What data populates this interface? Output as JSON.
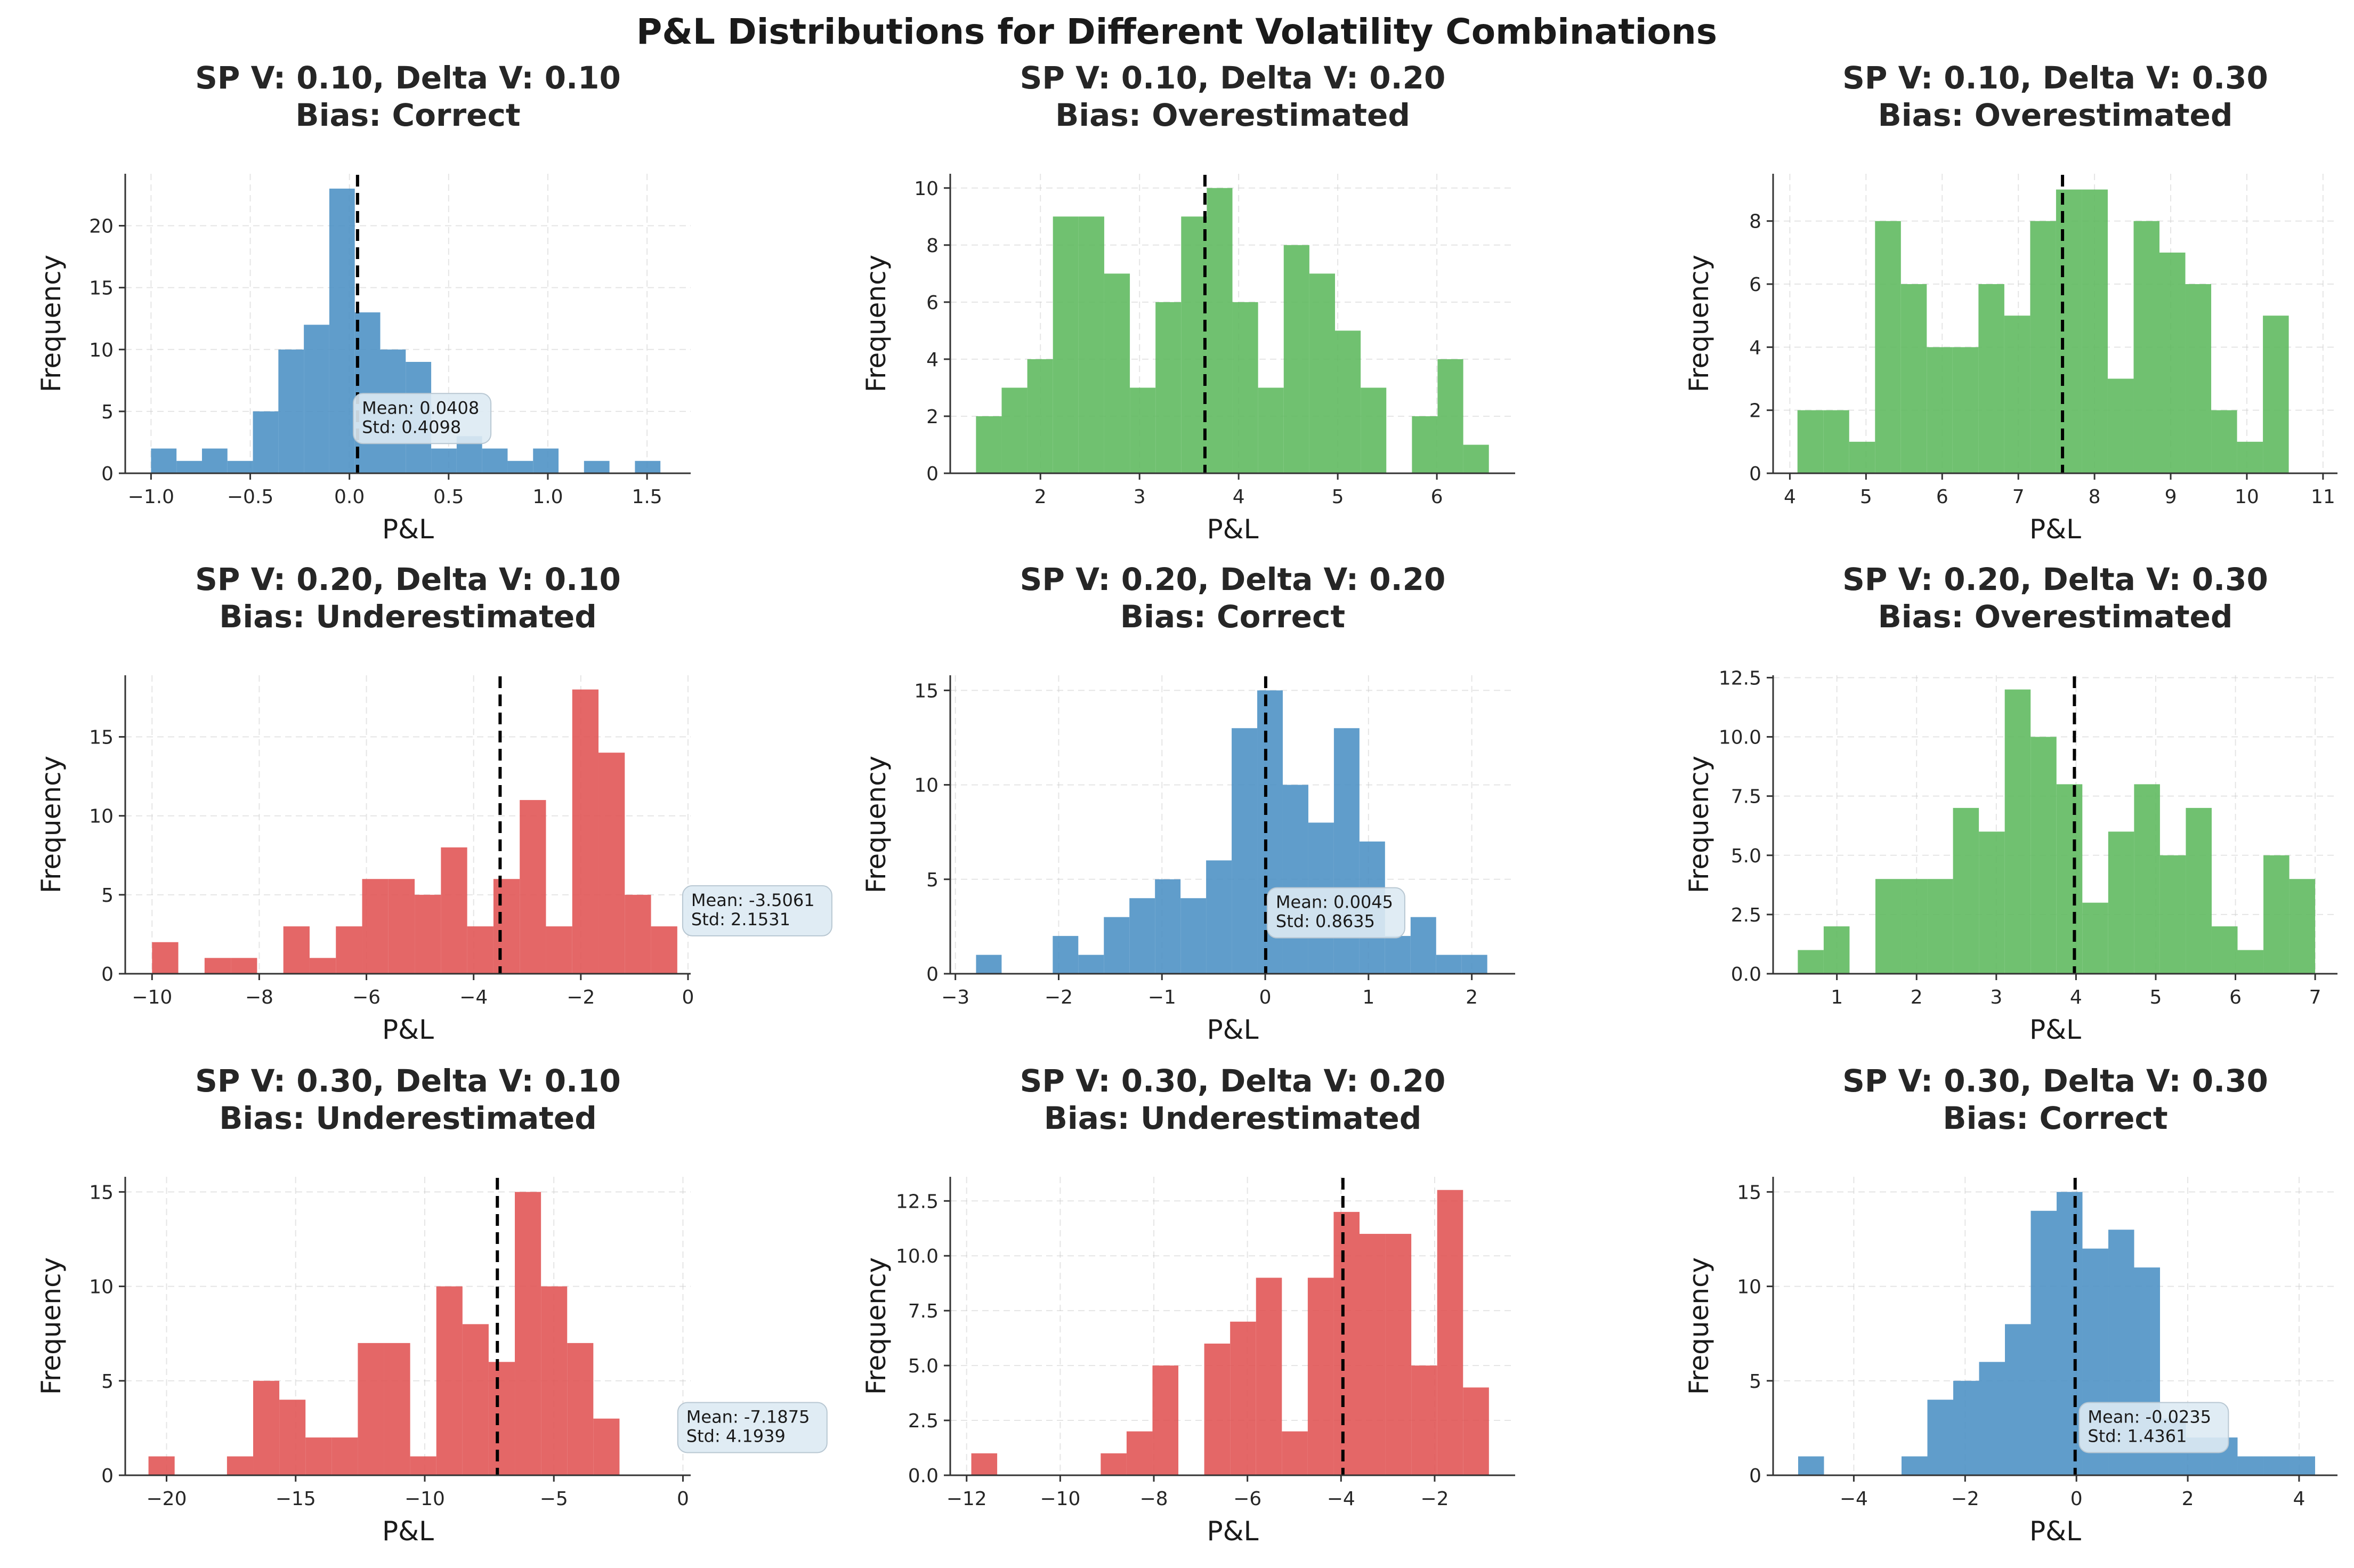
{
  "figure": {
    "title": "P&L Distributions for Different Volatility Combinations"
  },
  "chart_data": [
    {
      "type": "bar",
      "title": "SP V: 0.10, Delta V: 0.10",
      "subtitle": "Bias: Correct",
      "xlabel": "P&L",
      "ylabel": "Frequency",
      "color": "#4a90c4",
      "xlim": [
        -1.13,
        1.72
      ],
      "ylim": [
        0,
        24.2
      ],
      "xticks": [
        -1.0,
        -0.5,
        0.0,
        0.5,
        1.0,
        1.5
      ],
      "xtick_labels": [
        "−1.0",
        "−0.5",
        "0.0",
        "0.5",
        "1.0",
        "1.5"
      ],
      "yticks": [
        0,
        5,
        10,
        15,
        20
      ],
      "ytick_labels": [
        "0",
        "5",
        "10",
        "15",
        "20"
      ],
      "bins": {
        "start": -1.0,
        "width": 0.12837,
        "counts": [
          2,
          1,
          2,
          1,
          5,
          10,
          12,
          23,
          13,
          10,
          9,
          2,
          3,
          2,
          1,
          2,
          0,
          1,
          0,
          1
        ]
      },
      "mean": 0.0408,
      "stats_text": [
        "Mean: 0.0408",
        "Std: 0.4098"
      ],
      "annotation_at": [
        0.02,
        2.4
      ]
    },
    {
      "type": "bar",
      "title": "SP V: 0.10, Delta V: 0.20",
      "subtitle": "Bias: Overestimated",
      "xlabel": "P&L",
      "ylabel": "Frequency",
      "color": "#5cb85c",
      "xlim": [
        1.09,
        6.79
      ],
      "ylim": [
        0,
        10.5
      ],
      "xticks": [
        2,
        3,
        4,
        5,
        6
      ],
      "xtick_labels": [
        "2",
        "3",
        "4",
        "5",
        "6"
      ],
      "yticks": [
        0,
        2,
        4,
        6,
        8,
        10
      ],
      "ytick_labels": [
        "0",
        "2",
        "4",
        "6",
        "8",
        "10"
      ],
      "bins": {
        "start": 1.35,
        "width": 0.25875,
        "counts": [
          2,
          3,
          4,
          9,
          9,
          7,
          3,
          6,
          9,
          10,
          6,
          3,
          8,
          7,
          5,
          3,
          0,
          2,
          4,
          1
        ]
      },
      "mean": 3.66,
      "stats_text": [],
      "annotation_at": null
    },
    {
      "type": "bar",
      "title": "SP V: 0.10, Delta V: 0.30",
      "subtitle": "Bias: Overestimated",
      "xlabel": "P&L",
      "ylabel": "Frequency",
      "color": "#5cb85c",
      "xlim": [
        3.78,
        11.19
      ],
      "ylim": [
        0,
        9.5
      ],
      "xticks": [
        4,
        5,
        6,
        7,
        8,
        9,
        10,
        11
      ],
      "xtick_labels": [
        "4",
        "5",
        "6",
        "7",
        "8",
        "9",
        "10",
        "11"
      ],
      "yticks": [
        0,
        2,
        4,
        6,
        8
      ],
      "ytick_labels": [
        "0",
        "2",
        "4",
        "6",
        "8"
      ],
      "bins": {
        "start": 4.1,
        "width": 0.3395,
        "counts": [
          2,
          2,
          1,
          8,
          6,
          4,
          4,
          6,
          5,
          8,
          9,
          9,
          3,
          8,
          7,
          6,
          2,
          1,
          5,
          0
        ]
      },
      "mean": 7.58,
      "stats_text": [],
      "annotation_at": null
    },
    {
      "type": "bar",
      "title": "SP V: 0.20, Delta V: 0.10",
      "subtitle": "Bias: Underestimated",
      "xlabel": "P&L",
      "ylabel": "Frequency",
      "color": "#e05252",
      "xlim": [
        -10.5,
        0.05
      ],
      "ylim": [
        0,
        18.9
      ],
      "xticks": [
        -10,
        -8,
        -6,
        -4,
        -2,
        0
      ],
      "xtick_labels": [
        "−10",
        "−8",
        "−6",
        "−4",
        "−2",
        "0"
      ],
      "yticks": [
        0,
        5,
        10,
        15
      ],
      "ytick_labels": [
        "0",
        "5",
        "10",
        "15"
      ],
      "bins": {
        "start": -10.0,
        "width": 0.49,
        "counts": [
          2,
          0,
          1,
          1,
          0,
          3,
          1,
          3,
          6,
          6,
          5,
          8,
          3,
          6,
          11,
          3,
          18,
          14,
          5,
          3
        ]
      },
      "mean": -3.5061,
      "stats_text": [
        "Mean: -3.5061",
        "Std: 2.1531"
      ],
      "annotation_at": [
        -0.1,
        2.4
      ]
    },
    {
      "type": "bar",
      "title": "SP V: 0.20, Delta V: 0.20",
      "subtitle": "Bias: Correct",
      "xlabel": "P&L",
      "ylabel": "Frequency",
      "color": "#4a90c4",
      "xlim": [
        -3.05,
        2.42
      ],
      "ylim": [
        0,
        15.8
      ],
      "xticks": [
        -3,
        -2,
        -1,
        0,
        1,
        2
      ],
      "xtick_labels": [
        "−3",
        "−2",
        "−1",
        "0",
        "1",
        "2"
      ],
      "yticks": [
        0,
        5,
        10,
        15
      ],
      "ytick_labels": [
        "0",
        "5",
        "10",
        "15"
      ],
      "bins": {
        "start": -2.8,
        "width": 0.2475,
        "counts": [
          1,
          0,
          0,
          2,
          1,
          3,
          4,
          5,
          4,
          6,
          13,
          15,
          10,
          8,
          13,
          7,
          2,
          3,
          1,
          1
        ]
      },
      "mean": 0.0045,
      "stats_text": [
        "Mean: 0.0045",
        "Std: 0.8635"
      ],
      "annotation_at": [
        0.02,
        1.9
      ]
    },
    {
      "type": "bar",
      "title": "SP V: 0.20, Delta V: 0.30",
      "subtitle": "Bias: Overestimated",
      "xlabel": "P&L",
      "ylabel": "Frequency",
      "color": "#5cb85c",
      "xlim": [
        0.2,
        7.28
      ],
      "ylim": [
        0,
        12.6
      ],
      "xticks": [
        1,
        2,
        3,
        4,
        5,
        6,
        7
      ],
      "xtick_labels": [
        "1",
        "2",
        "3",
        "4",
        "5",
        "6",
        "7"
      ],
      "yticks": [
        0,
        2.5,
        5.0,
        7.5,
        10.0,
        12.5
      ],
      "ytick_labels": [
        "0.0",
        "2.5",
        "5.0",
        "7.5",
        "10.0",
        "12.5"
      ],
      "bins": {
        "start": 0.51,
        "width": 0.3245,
        "counts": [
          1,
          2,
          0,
          4,
          4,
          4,
          7,
          6,
          12,
          10,
          8,
          3,
          6,
          8,
          5,
          7,
          2,
          1,
          5,
          4
        ]
      },
      "mean": 3.98,
      "stats_text": [],
      "annotation_at": null
    },
    {
      "type": "bar",
      "title": "SP V: 0.30, Delta V: 0.10",
      "subtitle": "Bias: Underestimated",
      "xlabel": "P&L",
      "ylabel": "Frequency",
      "color": "#e05252",
      "xlim": [
        -21.6,
        0.3
      ],
      "ylim": [
        0,
        15.8
      ],
      "xticks": [
        -20,
        -15,
        -10,
        -5,
        0
      ],
      "xtick_labels": [
        "−20",
        "−15",
        "−10",
        "−5",
        "0"
      ],
      "yticks": [
        0,
        5,
        10,
        15
      ],
      "ytick_labels": [
        "0",
        "5",
        "10",
        "15"
      ],
      "bins": {
        "start": -20.7,
        "width": 1.0135,
        "counts": [
          1,
          0,
          0,
          1,
          5,
          4,
          2,
          2,
          7,
          7,
          1,
          10,
          8,
          6,
          15,
          10,
          7,
          3,
          0,
          0
        ]
      },
      "mean": -7.1875,
      "stats_text": [
        "Mean: -7.1875",
        "Std: 4.1939"
      ],
      "annotation_at": [
        -0.2,
        1.2
      ]
    },
    {
      "type": "bar",
      "title": "SP V: 0.30, Delta V: 0.20",
      "subtitle": "Bias: Underestimated",
      "xlabel": "P&L",
      "ylabel": "Frequency",
      "color": "#e05252",
      "xlim": [
        -12.35,
        -0.28
      ],
      "ylim": [
        0,
        13.6
      ],
      "xticks": [
        -12,
        -10,
        -8,
        -6,
        -4,
        -2
      ],
      "xtick_labels": [
        "−12",
        "−10",
        "−8",
        "−6",
        "−4",
        "−2"
      ],
      "yticks": [
        0,
        2.5,
        5.0,
        7.5,
        10.0,
        12.5
      ],
      "ytick_labels": [
        "0.0",
        "2.5",
        "5.0",
        "7.5",
        "10.0",
        "12.5"
      ],
      "bins": {
        "start": -11.9,
        "width": 0.553,
        "counts": [
          1,
          0,
          0,
          0,
          0,
          1,
          2,
          5,
          0,
          6,
          7,
          9,
          2,
          9,
          12,
          11,
          11,
          5,
          13,
          4
        ]
      },
      "mean": -3.96,
      "stats_text": [],
      "annotation_at": null
    },
    {
      "type": "bar",
      "title": "SP V: 0.30, Delta V: 0.30",
      "subtitle": "Bias: Correct",
      "xlabel": "P&L",
      "ylabel": "Frequency",
      "color": "#4a90c4",
      "xlim": [
        -5.45,
        4.69
      ],
      "ylim": [
        0,
        15.8
      ],
      "xticks": [
        -4,
        -2,
        0,
        2,
        4
      ],
      "xtick_labels": [
        "−4",
        "−2",
        "0",
        "2",
        "4"
      ],
      "yticks": [
        0,
        5,
        10,
        15
      ],
      "ytick_labels": [
        "0",
        "5",
        "10",
        "15"
      ],
      "bins": {
        "start": -5.0,
        "width": 0.4644,
        "counts": [
          1,
          0,
          0,
          0,
          1,
          4,
          5,
          6,
          8,
          14,
          15,
          12,
          13,
          11,
          3,
          2,
          2,
          1,
          1,
          1
        ]
      },
      "mean": -0.0235,
      "stats_text": [
        "Mean: -0.0235",
        "Std: 1.4361"
      ],
      "annotation_at": [
        0.05,
        1.2
      ]
    }
  ]
}
